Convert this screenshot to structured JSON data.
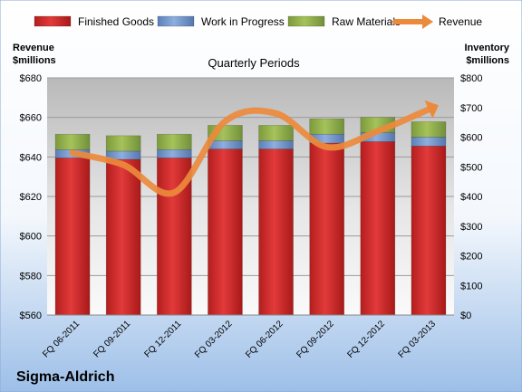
{
  "chart_data": {
    "type": "bar",
    "stacked": true,
    "title": "Quarterly Periods",
    "company": "Sigma-Aldrich",
    "categories": [
      "FQ 06-2011",
      "FQ 09-2011",
      "FQ 12-2011",
      "FQ 03-2012",
      "FQ 06-2012",
      "FQ 09-2012",
      "FQ 12-2012",
      "FQ 03-2013"
    ],
    "left_axis": {
      "title_line1": "Revenue",
      "title_line2": "$millions",
      "range": [
        560,
        680
      ],
      "ticks": [
        "$560",
        "$580",
        "$600",
        "$620",
        "$640",
        "$660",
        "$680"
      ]
    },
    "right_axis": {
      "title_line1": "Inventory",
      "title_line2": "$millions",
      "range": [
        0,
        800
      ],
      "ticks": [
        "$0",
        "$100",
        "$200",
        "$300",
        "$400",
        "$500",
        "$600",
        "$700",
        "$800"
      ]
    },
    "series": [
      {
        "name": "Finished Goods",
        "axis": "right",
        "kind": "bar",
        "color": "#d42a2a",
        "values": [
          530,
          525,
          530,
          560,
          560,
          580,
          585,
          570
        ]
      },
      {
        "name": "Work in Progress",
        "axis": "right",
        "kind": "bar",
        "color": "#6f93c8",
        "values": [
          28,
          28,
          28,
          28,
          28,
          30,
          30,
          30
        ]
      },
      {
        "name": "Raw Materials",
        "axis": "right",
        "kind": "bar",
        "color": "#8fae4a",
        "values": [
          52,
          52,
          52,
          52,
          52,
          52,
          52,
          52
        ]
      },
      {
        "name": "Revenue",
        "axis": "left",
        "kind": "line",
        "color": "#ec8a3c",
        "values": [
          642,
          636,
          622,
          658,
          662,
          645,
          653,
          664
        ]
      }
    ],
    "legend_position": "top",
    "grid": true
  }
}
